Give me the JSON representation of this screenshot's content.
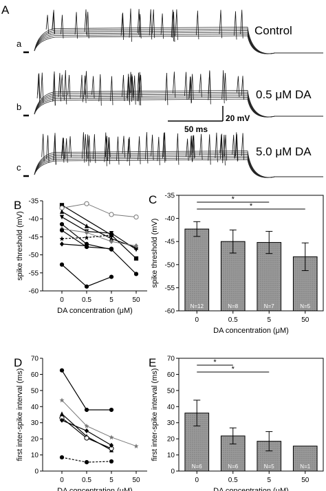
{
  "panel_a": {
    "letter": "A",
    "rows": [
      {
        "label": "a",
        "condition": "Control"
      },
      {
        "label": "b",
        "condition": "0.5 μM DA"
      },
      {
        "label": "c",
        "condition": "5.0 μM DA"
      }
    ],
    "scalebar": {
      "voltage": "20 mV",
      "time": "50 ms"
    }
  },
  "chart_data": [
    {
      "panel": "B",
      "type": "line",
      "xlabel": "DA concentration (μM)",
      "ylabel": "spike threshold (mV)",
      "x": [
        "0",
        "0.5",
        "5",
        "50"
      ],
      "ylim": [
        -60,
        -35
      ],
      "yticks": [
        -60,
        -55,
        -50,
        -45,
        -40,
        -35
      ],
      "series": [
        {
          "values": [
            -36.2,
            null,
            -44.5,
            -51.0
          ],
          "marker": "square"
        },
        {
          "values": [
            -37.0,
            -35.8,
            -38.8,
            -39.5
          ],
          "marker": "open-circle",
          "gray": true
        },
        {
          "values": [
            -38.0,
            -42.0,
            -45.5,
            -48.0
          ],
          "marker": "triangle"
        },
        {
          "values": [
            -39.5,
            -43.5,
            -44.0,
            -48.5
          ],
          "marker": "triangle-down"
        },
        {
          "values": [
            -41.5,
            -47.0,
            -48.5,
            -55.3
          ],
          "marker": "circle"
        },
        {
          "values": [
            -42.8,
            -43.8,
            -46.3,
            -47.5
          ],
          "marker": "diamond",
          "gray": true
        },
        {
          "values": [
            -43.2,
            -47.8,
            -48.3,
            null
          ],
          "marker": "circle"
        },
        {
          "values": [
            -45.5,
            -45.2,
            -44.5,
            null
          ],
          "marker": "star",
          "dashed": true
        },
        {
          "values": [
            -47.0,
            -47.5,
            null,
            null
          ],
          "marker": "diamond"
        },
        {
          "values": [
            -52.7,
            -58.8,
            -56.1,
            null
          ],
          "marker": "circle"
        }
      ]
    },
    {
      "panel": "C",
      "type": "bar",
      "xlabel": "DA concentration (μM)",
      "ylabel": "spike threshold (mV)",
      "categories": [
        "0",
        "0.5",
        "5",
        "50"
      ],
      "values": [
        -42.3,
        -45.0,
        -45.2,
        -48.3
      ],
      "errors": [
        1.6,
        2.5,
        2.4,
        3.0
      ],
      "n_labels": [
        "N=12",
        "N=8",
        "N=7",
        "N=5"
      ],
      "ylim": [
        -60,
        -35
      ],
      "yticks": [
        -60,
        -55,
        -50,
        -45,
        -40,
        -35
      ],
      "significance": [
        {
          "from": 0,
          "to": 2,
          "label": "*"
        },
        {
          "from": 0,
          "to": 3,
          "label": "*"
        }
      ]
    },
    {
      "panel": "D",
      "type": "line",
      "xlabel": "DA concentration (μM)",
      "ylabel": "first inter-spike interval (ms)",
      "x": [
        "0",
        "0.5",
        "5",
        "50"
      ],
      "ylim": [
        0,
        70
      ],
      "yticks": [
        0,
        10,
        20,
        30,
        40,
        50,
        60,
        70
      ],
      "series": [
        {
          "values": [
            62.5,
            38.0,
            38.0,
            null
          ],
          "marker": "circle"
        },
        {
          "values": [
            44.0,
            28.0,
            21.0,
            15.5
          ],
          "marker": "star",
          "gray": true
        },
        {
          "values": [
            35.5,
            21.5,
            13.0,
            null
          ],
          "marker": "triangle"
        },
        {
          "values": [
            33.0,
            20.5,
            14.0,
            null
          ],
          "marker": "open-circle"
        },
        {
          "values": [
            31.5,
            25.0,
            16.0,
            null
          ],
          "marker": "diamond"
        },
        {
          "values": [
            8.5,
            5.5,
            6.0,
            null
          ],
          "marker": "circle",
          "dashed": true
        }
      ]
    },
    {
      "panel": "E",
      "type": "bar",
      "xlabel": "DA concentration (μM)",
      "ylabel": "first inter-spike interval (ms)",
      "categories": [
        "0",
        "0.5",
        "5",
        "50"
      ],
      "values": [
        36.0,
        21.8,
        18.5,
        15.5
      ],
      "errors": [
        8.0,
        5.0,
        6.0,
        0
      ],
      "n_labels": [
        "N=6",
        "N=6",
        "N=5",
        "N=1"
      ],
      "ylim": [
        0,
        70
      ],
      "yticks": [
        0,
        10,
        20,
        30,
        40,
        50,
        60,
        70
      ],
      "significance": [
        {
          "from": 0,
          "to": 1,
          "label": "*"
        },
        {
          "from": 0,
          "to": 2,
          "label": "*"
        }
      ]
    }
  ]
}
